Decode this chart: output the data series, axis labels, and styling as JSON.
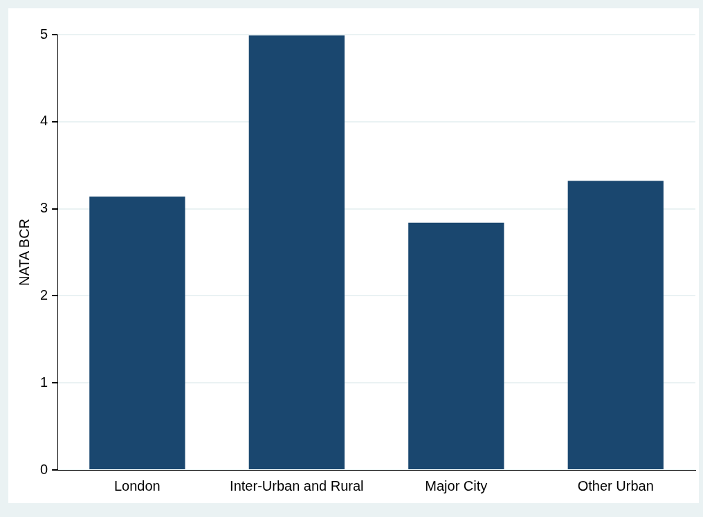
{
  "chart_data": {
    "type": "bar",
    "ylabel": "NATA BCR",
    "categories": [
      "London",
      "Inter-Urban and Rural",
      "Major City",
      "Other Urban"
    ],
    "values": [
      3.14,
      4.99,
      2.84,
      3.32
    ],
    "color": "#1a476f",
    "ylim": [
      0,
      5
    ],
    "yticks": [
      0,
      1,
      2,
      3,
      4,
      5
    ],
    "grid": "y",
    "legend": false
  }
}
